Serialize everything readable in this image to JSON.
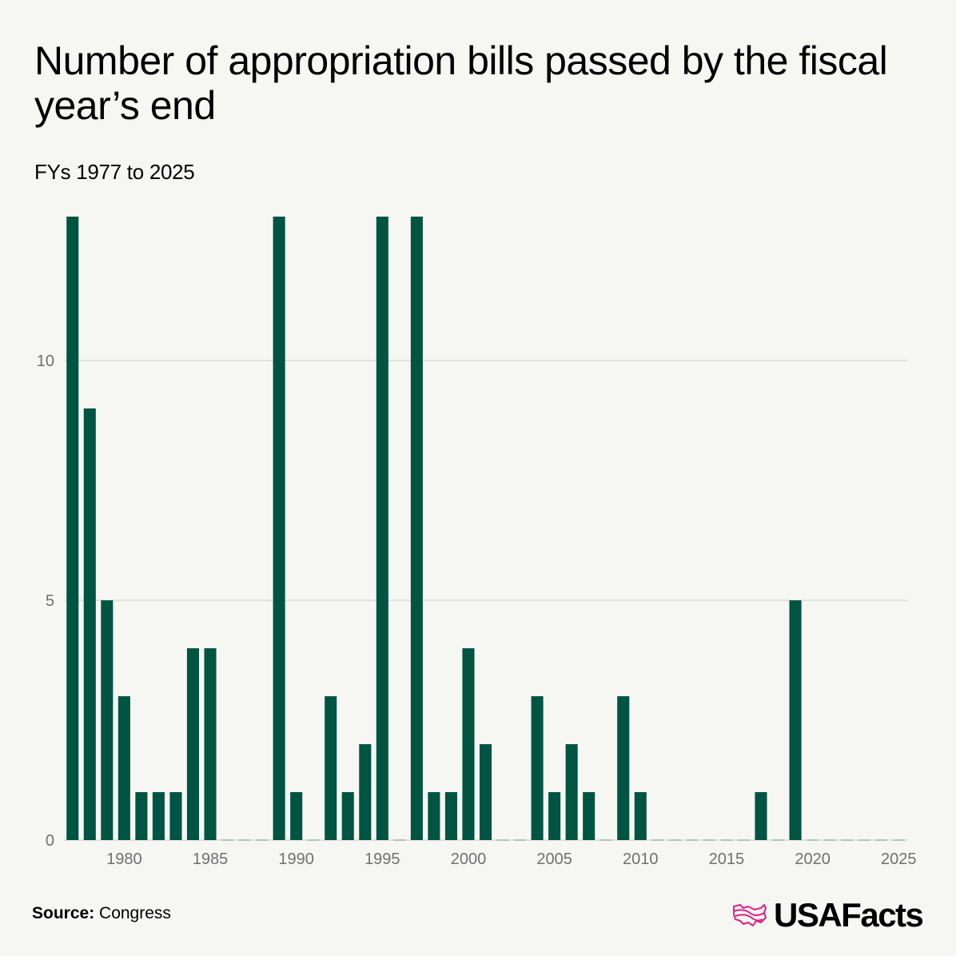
{
  "colors": {
    "bar": "#005442",
    "grid": "#dcdcd6",
    "background": "#f6f6f2",
    "logo_accent": "#e0218a",
    "tick": "#707070"
  },
  "chart_data": {
    "type": "bar",
    "title": "Number of appropriation bills passed by the fiscal year’s end",
    "subtitle": "FYs 1977 to 2025",
    "xlabel": "",
    "ylabel": "",
    "categories": [
      1977,
      1978,
      1979,
      1980,
      1981,
      1982,
      1983,
      1984,
      1985,
      1986,
      1987,
      1988,
      1989,
      1990,
      1991,
      1992,
      1993,
      1994,
      1995,
      1996,
      1997,
      1998,
      1999,
      2000,
      2001,
      2002,
      2003,
      2004,
      2005,
      2006,
      2007,
      2008,
      2009,
      2010,
      2011,
      2012,
      2013,
      2014,
      2015,
      2016,
      2017,
      2018,
      2019,
      2020,
      2021,
      2022,
      2023,
      2024,
      2025
    ],
    "values": [
      13,
      9,
      5,
      3,
      1,
      1,
      1,
      4,
      4,
      0,
      0,
      0,
      13,
      1,
      0,
      3,
      1,
      2,
      13,
      0,
      13,
      1,
      1,
      4,
      2,
      0,
      0,
      3,
      1,
      2,
      1,
      0,
      3,
      1,
      0,
      0,
      0,
      0,
      0,
      0,
      1,
      0,
      5,
      0,
      0,
      0,
      0,
      0,
      0
    ],
    "ylim": [
      0,
      13
    ],
    "yticks": [
      0,
      5,
      10
    ],
    "xticks": [
      1980,
      1985,
      1990,
      1995,
      2000,
      2005,
      2010,
      2015,
      2020,
      2025
    ],
    "grid": true,
    "legend": "none"
  },
  "footer": {
    "source_label": "Source:",
    "source_value": "Congress",
    "logo_text": "USAFacts"
  }
}
